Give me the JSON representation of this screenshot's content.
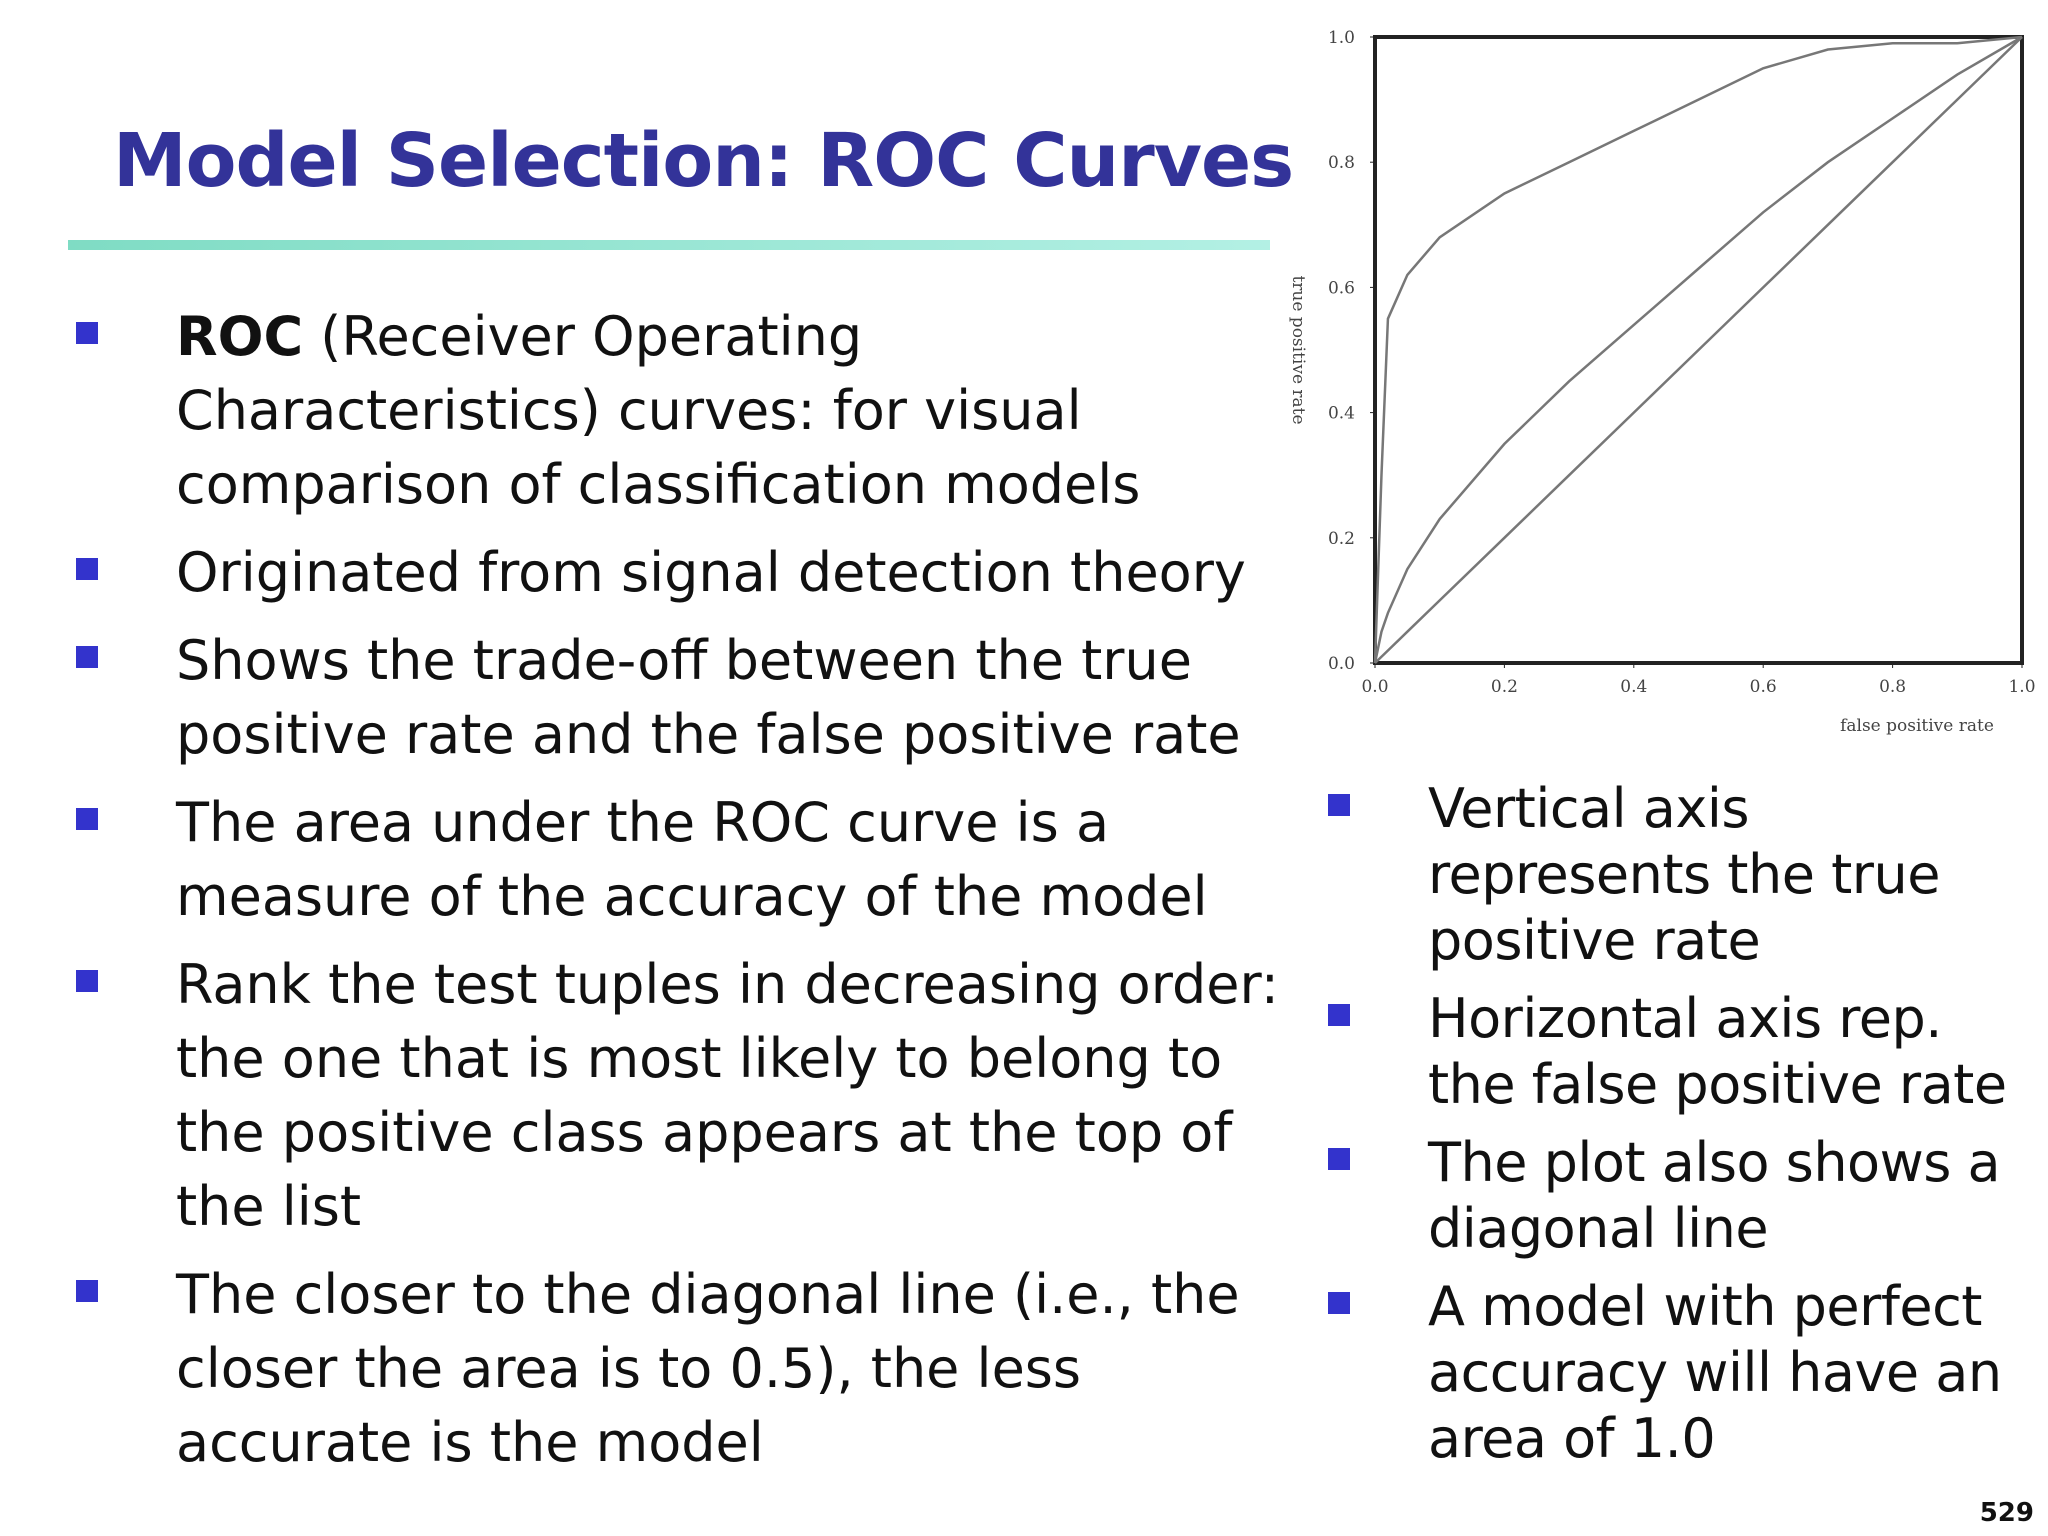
{
  "title": "Model Selection: ROC Curves",
  "left_bullets": [
    [
      "ROC",
      "(Receiver Operating Characteristics) curves: for visual comparison of classification models"
    ],
    [
      "Originated from signal detection theory"
    ],
    [
      "Shows the trade-off between the true positive rate and the false positive rate"
    ],
    [
      "The area under the ROC curve is a measure of the accuracy of the model"
    ],
    [
      "Rank the test tuples in decreasing order: the one that is most likely to belong to the positive class appears at the top of the list"
    ],
    [
      "The closer to the diagonal line (i.e., the closer the area is to 0.5), the less accurate is the model"
    ]
  ],
  "right_bullets": [
    "Vertical axis represents the true positive rate",
    "Horizontal axis rep. the false positive rate",
    "The plot also shows a diagonal line",
    "A model with perfect accuracy will have an area of 1.0"
  ],
  "page_number": "529",
  "chart_data": {
    "type": "line",
    "xlabel": "false positive rate",
    "ylabel": "true positive rate",
    "xlim": [
      0,
      1
    ],
    "ylim": [
      0,
      1
    ],
    "xticks": [
      {
        "value": 0,
        "label": "0.0"
      },
      0.2,
      0.4,
      0.6,
      0.8,
      {
        "value": 1,
        "label": "1.0"
      }
    ],
    "yticks": [
      {
        "value": 0,
        "label": "0.0"
      },
      0.2,
      0.4,
      0.6,
      0.8,
      {
        "value": 1,
        "label": "1.0"
      }
    ],
    "x": [
      0,
      0.01,
      0.02,
      0.05,
      0.1,
      0.2,
      0.3,
      0.4,
      0.5,
      0.6,
      0.7,
      0.8,
      0.9,
      1
    ],
    "series": [
      {
        "color": "#777777",
        "values": [
          0,
          0.3,
          0.55,
          0.62,
          0.68,
          0.75,
          0.8,
          0.85,
          0.9,
          0.95,
          0.98,
          0.99,
          0.99,
          1
        ]
      },
      {
        "color": "#777777",
        "values": [
          0,
          0.05,
          0.08,
          0.15,
          0.23,
          0.35,
          0.45,
          0.54,
          0.63,
          0.72,
          0.8,
          0.87,
          0.94,
          1
        ]
      },
      {
        "color": "#777777",
        "values": [
          0,
          0.01,
          0.02,
          0.05,
          0.1,
          0.2,
          0.3,
          0.4,
          0.5,
          0.6,
          0.7,
          0.8,
          0.9,
          1
        ]
      }
    ]
  }
}
